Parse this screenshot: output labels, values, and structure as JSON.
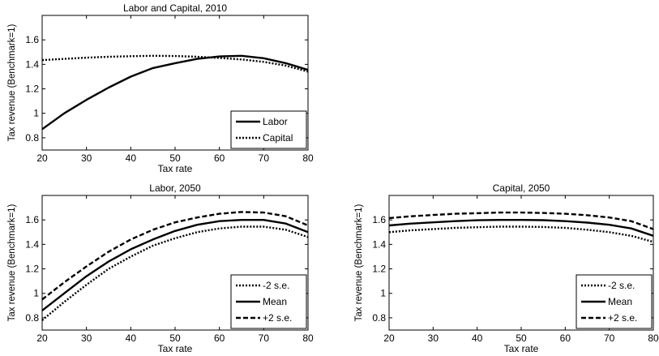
{
  "chart_data": [
    {
      "type": "line",
      "title": "Labor and Capital, 2010",
      "xlabel": "Tax rate",
      "ylabel": "Tax revenue (Benchmark=1)",
      "xlim": [
        20,
        80
      ],
      "ylim": [
        0.7,
        1.8
      ],
      "xticks": [
        20,
        30,
        40,
        50,
        60,
        70,
        80
      ],
      "yticks": [
        0.8,
        1,
        1.2,
        1.4,
        1.6
      ],
      "ytick_labels": [
        "0.8",
        "1",
        "1.2",
        "1.4",
        "1.6"
      ],
      "legend_position": "bottom-right",
      "x": [
        20,
        25,
        30,
        35,
        40,
        45,
        50,
        55,
        60,
        65,
        70,
        75,
        80
      ],
      "series": [
        {
          "name": "Labor",
          "style": "solid",
          "values": [
            0.87,
            1.0,
            1.11,
            1.21,
            1.3,
            1.37,
            1.41,
            1.445,
            1.465,
            1.47,
            1.45,
            1.41,
            1.355
          ]
        },
        {
          "name": "Capital",
          "style": "dotted",
          "values": [
            1.435,
            1.445,
            1.455,
            1.462,
            1.467,
            1.47,
            1.468,
            1.462,
            1.452,
            1.44,
            1.42,
            1.39,
            1.34
          ]
        }
      ]
    },
    {
      "type": "line",
      "title": "Labor, 2050",
      "xlabel": "Tax rate",
      "ylabel": "Tax revenue (Benchmark=1)",
      "xlim": [
        20,
        80
      ],
      "ylim": [
        0.7,
        1.8
      ],
      "xticks": [
        20,
        30,
        40,
        50,
        60,
        70,
        80
      ],
      "yticks": [
        0.8,
        1,
        1.2,
        1.4,
        1.6
      ],
      "ytick_labels": [
        "0.8",
        "1",
        "1.2",
        "1.4",
        "1.6"
      ],
      "legend_position": "bottom-right",
      "x": [
        20,
        25,
        30,
        35,
        40,
        45,
        50,
        55,
        60,
        65,
        70,
        75,
        80
      ],
      "series": [
        {
          "name": "-2 s.e.",
          "style": "dotted",
          "values": [
            0.78,
            0.93,
            1.07,
            1.2,
            1.3,
            1.39,
            1.45,
            1.5,
            1.53,
            1.545,
            1.545,
            1.52,
            1.46
          ]
        },
        {
          "name": "Mean",
          "style": "solid",
          "values": [
            0.86,
            1.0,
            1.14,
            1.26,
            1.36,
            1.44,
            1.51,
            1.56,
            1.59,
            1.6,
            1.6,
            1.57,
            1.5
          ]
        },
        {
          "name": "+2 s.e.",
          "style": "dashed",
          "values": [
            0.95,
            1.09,
            1.22,
            1.34,
            1.44,
            1.52,
            1.58,
            1.62,
            1.65,
            1.665,
            1.66,
            1.63,
            1.555
          ]
        }
      ]
    },
    {
      "type": "line",
      "title": "Capital, 2050",
      "xlabel": "Tax rate",
      "ylabel": "Tax revenue (Benchmark=1)",
      "xlim": [
        20,
        80
      ],
      "ylim": [
        0.7,
        1.8
      ],
      "xticks": [
        20,
        30,
        40,
        50,
        60,
        70,
        80
      ],
      "yticks": [
        0.8,
        1,
        1.2,
        1.4,
        1.6
      ],
      "ytick_labels": [
        "0.8",
        "1",
        "1.2",
        "1.4",
        "1.6"
      ],
      "legend_position": "bottom-right",
      "x": [
        20,
        25,
        30,
        35,
        40,
        45,
        50,
        55,
        60,
        65,
        70,
        75,
        80
      ],
      "series": [
        {
          "name": "-2 s.e.",
          "style": "dotted",
          "values": [
            1.5,
            1.515,
            1.525,
            1.535,
            1.54,
            1.545,
            1.545,
            1.542,
            1.535,
            1.52,
            1.5,
            1.47,
            1.42
          ]
        },
        {
          "name": "Mean",
          "style": "solid",
          "values": [
            1.555,
            1.57,
            1.58,
            1.59,
            1.597,
            1.6,
            1.6,
            1.598,
            1.59,
            1.578,
            1.56,
            1.53,
            1.47
          ]
        },
        {
          "name": "+2 s.e.",
          "style": "dashed",
          "values": [
            1.615,
            1.63,
            1.64,
            1.65,
            1.655,
            1.66,
            1.66,
            1.657,
            1.65,
            1.638,
            1.62,
            1.59,
            1.525
          ]
        }
      ]
    }
  ]
}
